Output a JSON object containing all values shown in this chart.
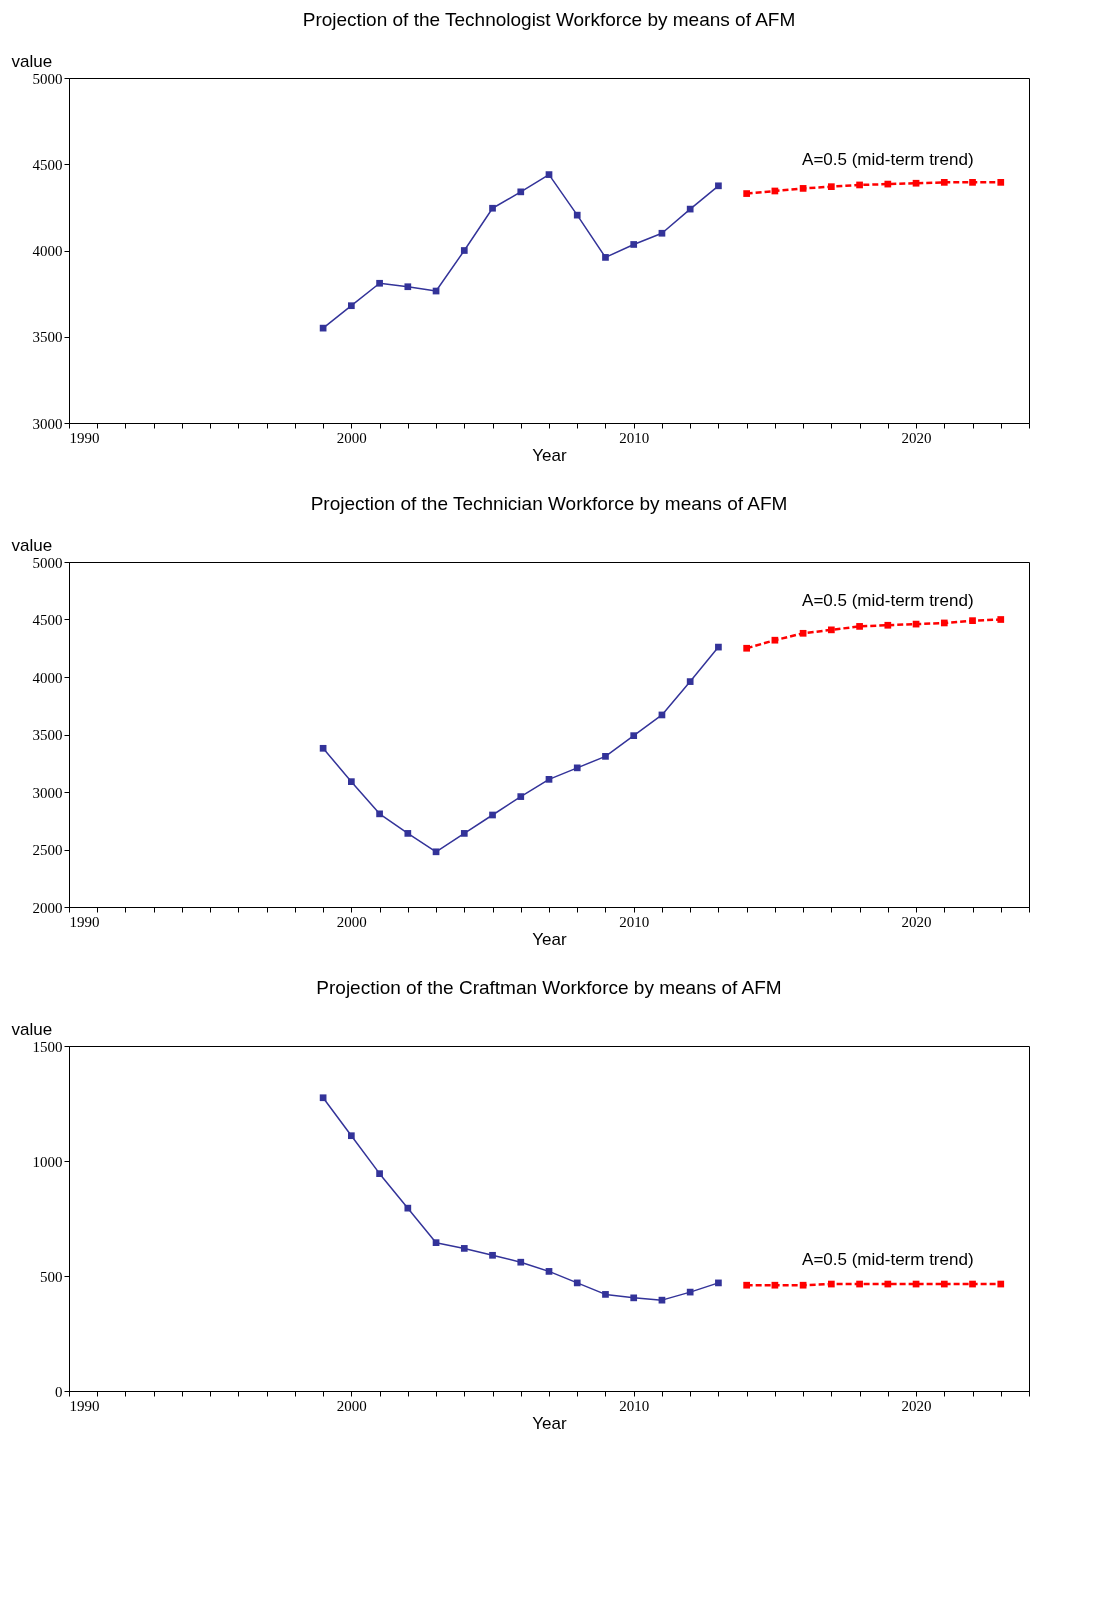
{
  "chart_data": [
    {
      "type": "line",
      "title": "Projection of the Technologist Workforce by means of AFM",
      "xlabel": "Year",
      "ylabel": "value",
      "marker": "square",
      "xlim": [
        1990,
        2024
      ],
      "xticks": [
        1990,
        {
          "value": 1991,
          "label": null
        },
        {
          "value": 1992,
          "label": null
        },
        {
          "value": 1993,
          "label": null
        },
        {
          "value": 1994,
          "label": null
        },
        {
          "value": 1995,
          "label": null
        },
        {
          "value": 1996,
          "label": null
        },
        {
          "value": 1997,
          "label": null
        },
        {
          "value": 1998,
          "label": null
        },
        {
          "value": 1999,
          "label": null
        },
        2000,
        {
          "value": 2001,
          "label": null
        },
        {
          "value": 2002,
          "label": null
        },
        {
          "value": 2003,
          "label": null
        },
        {
          "value": 2004,
          "label": null
        },
        {
          "value": 2005,
          "label": null
        },
        {
          "value": 2006,
          "label": null
        },
        {
          "value": 2007,
          "label": null
        },
        {
          "value": 2008,
          "label": null
        },
        {
          "value": 2009,
          "label": null
        },
        2010,
        {
          "value": 2011,
          "label": null
        },
        {
          "value": 2012,
          "label": null
        },
        {
          "value": 2013,
          "label": null
        },
        {
          "value": 2014,
          "label": null
        },
        {
          "value": 2015,
          "label": null
        },
        {
          "value": 2016,
          "label": null
        },
        {
          "value": 2017,
          "label": null
        },
        {
          "value": 2018,
          "label": null
        },
        {
          "value": 2019,
          "label": null
        },
        2020,
        {
          "value": 2021,
          "label": null
        },
        {
          "value": 2022,
          "label": null
        },
        {
          "value": 2023,
          "label": null
        },
        {
          "value": 2024,
          "label": null
        }
      ],
      "ylim": [
        3000,
        5000
      ],
      "yticks": [
        3000,
        3500,
        4000,
        4500,
        5000
      ],
      "series": [
        {
          "color": "#333399",
          "line_style": "solid",
          "x": [
            1999,
            2000,
            2001,
            2002,
            2003,
            2004,
            2005,
            2006,
            2007,
            2008,
            2009,
            2010,
            2011,
            2012,
            2013
          ],
          "values": [
            3550,
            3680,
            3810,
            3790,
            3765,
            4000,
            4245,
            4340,
            4440,
            4205,
            3960,
            4035,
            4100,
            4240,
            4375
          ]
        },
        {
          "name": "A=0.5 (mid-term trend)",
          "color": "#ff0000",
          "line_style": "dashed",
          "x": [
            2014,
            2015,
            2016,
            2017,
            2018,
            2019,
            2020,
            2021,
            2022,
            2023
          ],
          "values": [
            4330,
            4345,
            4360,
            4370,
            4380,
            4385,
            4390,
            4395,
            4395,
            4395
          ]
        }
      ]
    },
    {
      "type": "line",
      "title": "Projection of the Technician Workforce by means of AFM",
      "xlabel": "Year",
      "ylabel": "value",
      "marker": "square",
      "xlim": [
        1990,
        2024
      ],
      "xticks": [
        1990,
        {
          "value": 1991,
          "label": null
        },
        {
          "value": 1992,
          "label": null
        },
        {
          "value": 1993,
          "label": null
        },
        {
          "value": 1994,
          "label": null
        },
        {
          "value": 1995,
          "label": null
        },
        {
          "value": 1996,
          "label": null
        },
        {
          "value": 1997,
          "label": null
        },
        {
          "value": 1998,
          "label": null
        },
        {
          "value": 1999,
          "label": null
        },
        2000,
        {
          "value": 2001,
          "label": null
        },
        {
          "value": 2002,
          "label": null
        },
        {
          "value": 2003,
          "label": null
        },
        {
          "value": 2004,
          "label": null
        },
        {
          "value": 2005,
          "label": null
        },
        {
          "value": 2006,
          "label": null
        },
        {
          "value": 2007,
          "label": null
        },
        {
          "value": 2008,
          "label": null
        },
        {
          "value": 2009,
          "label": null
        },
        2010,
        {
          "value": 2011,
          "label": null
        },
        {
          "value": 2012,
          "label": null
        },
        {
          "value": 2013,
          "label": null
        },
        {
          "value": 2014,
          "label": null
        },
        {
          "value": 2015,
          "label": null
        },
        {
          "value": 2016,
          "label": null
        },
        {
          "value": 2017,
          "label": null
        },
        {
          "value": 2018,
          "label": null
        },
        {
          "value": 2019,
          "label": null
        },
        2020,
        {
          "value": 2021,
          "label": null
        },
        {
          "value": 2022,
          "label": null
        },
        {
          "value": 2023,
          "label": null
        },
        {
          "value": 2024,
          "label": null
        }
      ],
      "ylim": [
        2000,
        5000
      ],
      "yticks": [
        2000,
        2500,
        3000,
        3500,
        4000,
        4500,
        5000
      ],
      "series": [
        {
          "color": "#333399",
          "line_style": "solid",
          "x": [
            1999,
            2000,
            2001,
            2002,
            2003,
            2004,
            2005,
            2006,
            2007,
            2008,
            2009,
            2010,
            2011,
            2012,
            2013
          ],
          "values": [
            3380,
            3090,
            2810,
            2640,
            2480,
            2640,
            2800,
            2960,
            3110,
            3210,
            3310,
            3490,
            3670,
            3960,
            4260
          ]
        },
        {
          "name": "A=0.5 (mid-term trend)",
          "color": "#ff0000",
          "line_style": "dashed",
          "x": [
            2014,
            2015,
            2016,
            2017,
            2018,
            2019,
            2020,
            2021,
            2022,
            2023
          ],
          "values": [
            4250,
            4320,
            4380,
            4410,
            4440,
            4450,
            4460,
            4470,
            4490,
            4500
          ]
        }
      ]
    },
    {
      "type": "line",
      "title": "Projection of the Craftman Workforce by means of AFM",
      "xlabel": "Year",
      "ylabel": "value",
      "marker": "square",
      "xlim": [
        1990,
        2024
      ],
      "xticks": [
        1990,
        {
          "value": 1991,
          "label": null
        },
        {
          "value": 1992,
          "label": null
        },
        {
          "value": 1993,
          "label": null
        },
        {
          "value": 1994,
          "label": null
        },
        {
          "value": 1995,
          "label": null
        },
        {
          "value": 1996,
          "label": null
        },
        {
          "value": 1997,
          "label": null
        },
        {
          "value": 1998,
          "label": null
        },
        {
          "value": 1999,
          "label": null
        },
        2000,
        {
          "value": 2001,
          "label": null
        },
        {
          "value": 2002,
          "label": null
        },
        {
          "value": 2003,
          "label": null
        },
        {
          "value": 2004,
          "label": null
        },
        {
          "value": 2005,
          "label": null
        },
        {
          "value": 2006,
          "label": null
        },
        {
          "value": 2007,
          "label": null
        },
        {
          "value": 2008,
          "label": null
        },
        {
          "value": 2009,
          "label": null
        },
        2010,
        {
          "value": 2011,
          "label": null
        },
        {
          "value": 2012,
          "label": null
        },
        {
          "value": 2013,
          "label": null
        },
        {
          "value": 2014,
          "label": null
        },
        {
          "value": 2015,
          "label": null
        },
        {
          "value": 2016,
          "label": null
        },
        {
          "value": 2017,
          "label": null
        },
        {
          "value": 2018,
          "label": null
        },
        {
          "value": 2019,
          "label": null
        },
        2020,
        {
          "value": 2021,
          "label": null
        },
        {
          "value": 2022,
          "label": null
        },
        {
          "value": 2023,
          "label": null
        },
        {
          "value": 2024,
          "label": null
        }
      ],
      "ylim": [
        0,
        1500
      ],
      "yticks": [
        0,
        500,
        1000,
        1500
      ],
      "series": [
        {
          "color": "#333399",
          "line_style": "solid",
          "x": [
            1999,
            2000,
            2001,
            2002,
            2003,
            2004,
            2005,
            2006,
            2007,
            2008,
            2009,
            2010,
            2011,
            2012,
            2013
          ],
          "values": [
            1275,
            1110,
            945,
            795,
            645,
            620,
            590,
            560,
            520,
            470,
            420,
            405,
            395,
            430,
            470
          ]
        },
        {
          "name": "A=0.5 (mid-term trend)",
          "color": "#ff0000",
          "line_style": "dashed",
          "x": [
            2014,
            2015,
            2016,
            2017,
            2018,
            2019,
            2020,
            2021,
            2022,
            2023
          ],
          "values": [
            460,
            460,
            460,
            465,
            465,
            465,
            465,
            465,
            465,
            465
          ]
        }
      ]
    }
  ]
}
